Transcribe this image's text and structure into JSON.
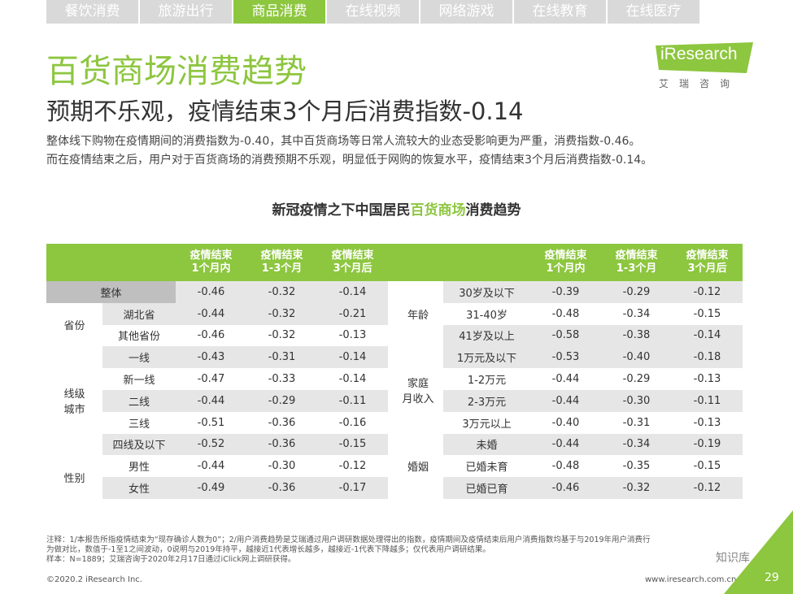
{
  "tabs": [
    "餐饮消费",
    "旅游出行",
    "商品消费",
    "在线视频",
    "网络游戏",
    "在线教育",
    "在线医疗"
  ],
  "logo": {
    "word": "iResearch",
    "sub": "艾瑞咨询"
  },
  "title": "百货商场消费趋势",
  "subtitle": "预期不乐观，疫情结束3个月后消费指数-0.14",
  "desc": [
    "整体线下购物在疫情期间的消费指数为-0.40，其中百货商场等日常人流较大的业态受影响更为严重，消费指数-0.46。",
    "而在疫情结束之后，用户对于百货商场的消费预期不乐观，明显低于网购的恢复水平，疫情结束3个月后消费指数-0.14。"
  ],
  "chart_title": {
    "pre": "新冠疫情之下中国居民",
    "hl": "百货商场",
    "post": "消费趋势"
  },
  "headers": {
    "h1a": "疫情结束",
    "h1b": "1个月内",
    "h2a": "疫情结束",
    "h2b": "1-3个月",
    "h3a": "疫情结束",
    "h3b": "3个月后"
  },
  "left": {
    "overall": {
      "label": "整体",
      "v": [
        "-0.46",
        "-0.32",
        "-0.14"
      ]
    },
    "province": {
      "group": "省份",
      "rows": [
        {
          "label": "湖北省",
          "v": [
            "-0.44",
            "-0.32",
            "-0.21"
          ]
        },
        {
          "label": "其他省份",
          "v": [
            "-0.46",
            "-0.32",
            "-0.13"
          ]
        }
      ]
    },
    "city": {
      "group1": "线级",
      "group2": "城市",
      "rows": [
        {
          "label": "一线",
          "v": [
            "-0.43",
            "-0.31",
            "-0.14"
          ]
        },
        {
          "label": "新一线",
          "v": [
            "-0.47",
            "-0.33",
            "-0.14"
          ]
        },
        {
          "label": "二线",
          "v": [
            "-0.44",
            "-0.29",
            "-0.11"
          ]
        },
        {
          "label": "三线",
          "v": [
            "-0.51",
            "-0.36",
            "-0.16"
          ]
        },
        {
          "label": "四线及以下",
          "v": [
            "-0.52",
            "-0.36",
            "-0.15"
          ]
        }
      ]
    },
    "gender": {
      "group": "性别",
      "rows": [
        {
          "label": "男性",
          "v": [
            "-0.44",
            "-0.30",
            "-0.12"
          ]
        },
        {
          "label": "女性",
          "v": [
            "-0.49",
            "-0.36",
            "-0.17"
          ]
        }
      ]
    }
  },
  "right": {
    "age": {
      "group": "年龄",
      "rows": [
        {
          "label": "30岁及以下",
          "v": [
            "-0.39",
            "-0.29",
            "-0.12"
          ]
        },
        {
          "label": "31-40岁",
          "v": [
            "-0.48",
            "-0.34",
            "-0.15"
          ]
        },
        {
          "label": "41岁及以上",
          "v": [
            "-0.58",
            "-0.38",
            "-0.14"
          ]
        }
      ]
    },
    "income": {
      "group1": "家庭",
      "group2": "月收入",
      "rows": [
        {
          "label": "1万元及以下",
          "v": [
            "-0.53",
            "-0.40",
            "-0.18"
          ]
        },
        {
          "label": "1-2万元",
          "v": [
            "-0.44",
            "-0.29",
            "-0.13"
          ]
        },
        {
          "label": "2-3万元",
          "v": [
            "-0.44",
            "-0.30",
            "-0.11"
          ]
        },
        {
          "label": "3万元以上",
          "v": [
            "-0.40",
            "-0.31",
            "-0.13"
          ]
        }
      ]
    },
    "marriage": {
      "group": "婚姻",
      "rows": [
        {
          "label": "未婚",
          "v": [
            "-0.44",
            "-0.34",
            "-0.19"
          ]
        },
        {
          "label": "已婚未育",
          "v": [
            "-0.48",
            "-0.35",
            "-0.15"
          ]
        },
        {
          "label": "已婚已育",
          "v": [
            "-0.46",
            "-0.32",
            "-0.12"
          ]
        }
      ]
    }
  },
  "footnote": [
    "注释：1/本报告所指疫情结束为“现存确诊人数为0”；2/用户消费趋势是艾瑞通过用户调研数据处理得出的指数，疫情期间及疫情结束后用户消费指数均基于与2019年用户消费行",
    "为做对比，数值于-1至1之间波动，0说明与2019年持平，越接近1代表增长越多，越接近-1代表下降越多；仅代表用户调研结果。",
    "样本：N=1889；艾瑞咨询于2020年2月17日通过iClick网上调研获得。"
  ],
  "copyright": "©2020.2 iResearch Inc.",
  "site": "www.iresearch.com.cn",
  "page_number": "29",
  "watermark": "知识库",
  "colors": {
    "accent": "#8dc63f",
    "tab_inactive": "#d9d9d9",
    "row_gray": "#e6e6e6",
    "overall_gray": "#bfbfbf"
  }
}
